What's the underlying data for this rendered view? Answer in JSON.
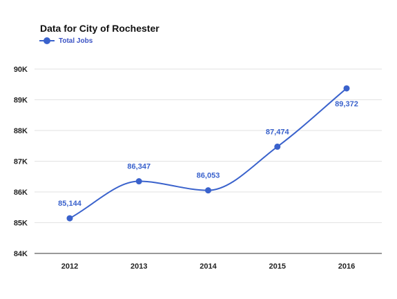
{
  "chart_data": {
    "type": "line",
    "title": "Data for City of Rochester",
    "xlabel": "",
    "ylabel": "",
    "categories": [
      "2012",
      "2013",
      "2014",
      "2015",
      "2016"
    ],
    "series": [
      {
        "name": "Total Jobs",
        "values": [
          85144,
          86347,
          86053,
          87474,
          89372
        ],
        "labels": [
          "85,144",
          "86,347",
          "86,053",
          "87,474",
          "89,372"
        ]
      }
    ],
    "ylim": [
      84000,
      90000
    ],
    "y_ticks": [
      84000,
      85000,
      86000,
      87000,
      88000,
      89000,
      90000
    ],
    "y_tick_labels": [
      "84K",
      "85K",
      "86K",
      "87K",
      "88K",
      "89K",
      "90K"
    ],
    "grid": true,
    "smooth": true,
    "legend_position": "top-left",
    "colors": {
      "series": "#3a62cc",
      "grid": "#e2e2e2"
    }
  }
}
